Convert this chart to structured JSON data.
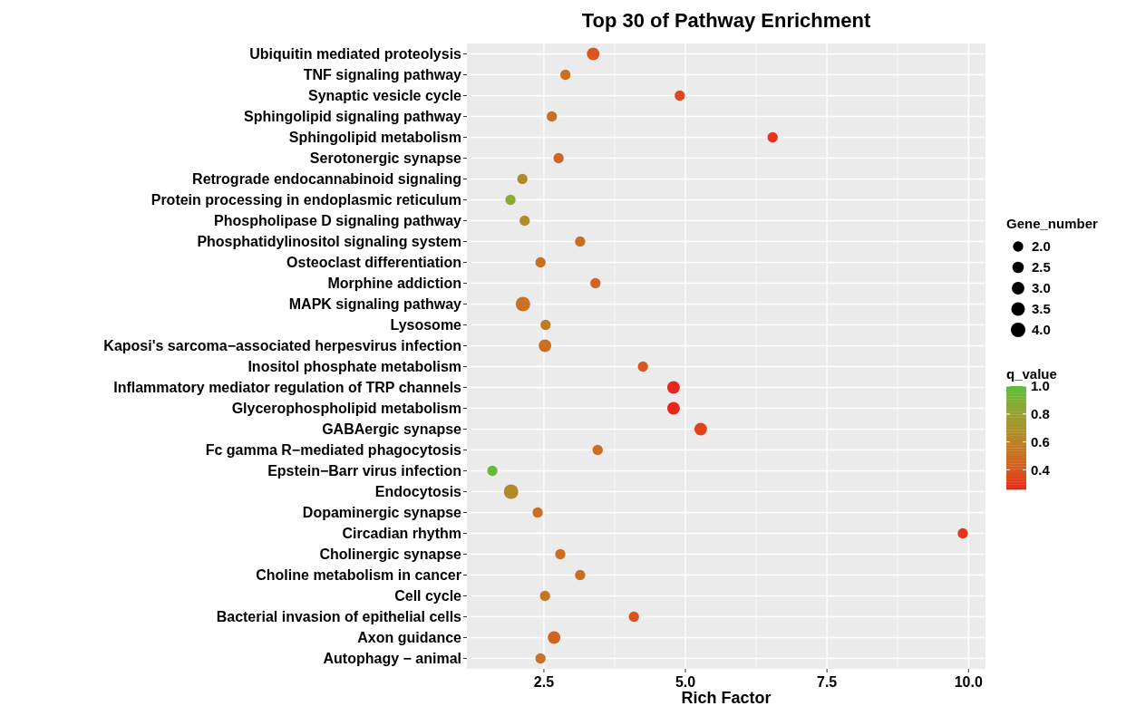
{
  "chart_data": {
    "type": "bubble",
    "title": "Top 30 of Pathway Enrichment",
    "xlabel": "Rich Factor",
    "orientation": "horizontal",
    "categories": [
      "Ubiquitin mediated proteolysis",
      "TNF signaling pathway",
      "Synaptic vesicle cycle",
      "Sphingolipid signaling pathway",
      "Sphingolipid metabolism",
      "Serotonergic synapse",
      "Retrograde endocannabinoid signaling",
      "Protein processing in endoplasmic reticulum",
      "Phospholipase D signaling pathway",
      "Phosphatidylinositol signaling system",
      "Osteoclast differentiation",
      "Morphine addiction",
      "MAPK signaling pathway",
      "Lysosome",
      "Kaposi's sarcoma−associated herpesvirus infection",
      "Inositol phosphate metabolism",
      "Inflammatory mediator regulation of TRP channels",
      "Glycerophospholipid metabolism",
      "GABAergic synapse",
      "Fc gamma R−mediated phagocytosis",
      "Epstein−Barr virus infection",
      "Endocytosis",
      "Dopaminergic synapse",
      "Circadian rhythm",
      "Cholinergic synapse",
      "Choline metabolism in cancer",
      "Cell cycle",
      "Bacterial invasion of epithelial cells",
      "Axon guidance",
      "Autophagy − animal"
    ],
    "values": [
      3.37,
      2.88,
      4.9,
      2.64,
      6.54,
      2.76,
      2.12,
      1.91,
      2.16,
      3.14,
      2.44,
      3.41,
      2.13,
      2.53,
      2.52,
      4.25,
      4.79,
      4.79,
      5.27,
      3.45,
      1.59,
      1.92,
      2.39,
      9.9,
      2.79,
      3.14,
      2.52,
      4.09,
      2.68,
      2.44
    ],
    "sizes": [
      3,
      2,
      2,
      2,
      2,
      2,
      2,
      2,
      2,
      2,
      2,
      2,
      4,
      2,
      3,
      2,
      3,
      3,
      3,
      2,
      2,
      4,
      2,
      2,
      2,
      2,
      2,
      2,
      3,
      2
    ],
    "cvalues": [
      0.4,
      0.5,
      0.35,
      0.5,
      0.3,
      0.45,
      0.65,
      0.85,
      0.68,
      0.5,
      0.5,
      0.45,
      0.52,
      0.55,
      0.5,
      0.4,
      0.27,
      0.27,
      0.33,
      0.5,
      0.98,
      0.65,
      0.5,
      0.3,
      0.5,
      0.5,
      0.55,
      0.38,
      0.45,
      0.52
    ],
    "size_legend": [
      {
        "value": 2,
        "label": "2.0"
      },
      {
        "value": 2.5,
        "label": "2.5"
      },
      {
        "value": 3,
        "label": "3.0"
      },
      {
        "value": 3.5,
        "label": "3.5"
      },
      {
        "value": 4,
        "label": "4.0"
      }
    ],
    "legend_title": "Gene_number",
    "clabel": "q_value",
    "clim": [
      0.26,
      1.0
    ],
    "cticks": [
      {
        "value": 0.4,
        "label": "0.4"
      },
      {
        "value": 0.6,
        "label": "0.6"
      },
      {
        "value": 0.8,
        "label": "0.8"
      },
      {
        "value": 1.0,
        "label": "1.0"
      }
    ],
    "xlim": [
      1.14,
      10.3
    ],
    "xticks": [
      {
        "value": 2.5,
        "label": "2.5"
      },
      {
        "value": 5,
        "label": "5.0"
      },
      {
        "value": 7.5,
        "label": "7.5"
      },
      {
        "value": 10,
        "label": "10.0"
      }
    ],
    "grid": true
  }
}
